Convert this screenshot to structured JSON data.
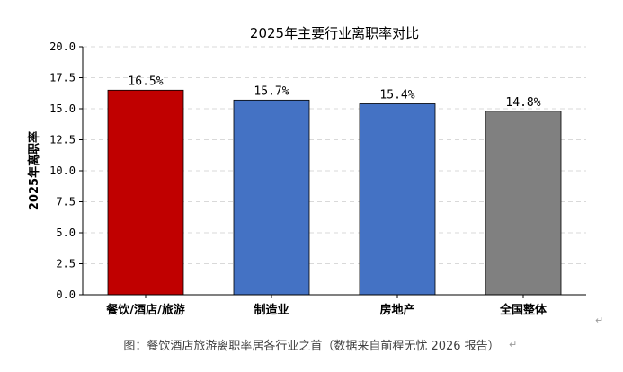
{
  "chart_data": {
    "type": "bar",
    "title": "2025年主要行业离职率对比",
    "ylabel": "2025年离职率",
    "xlabel": "",
    "categories": [
      "餐饮/酒店/旅游",
      "制造业",
      "房地产",
      "全国整体"
    ],
    "values": [
      16.5,
      15.7,
      15.4,
      14.8
    ],
    "value_labels": [
      "16.5%",
      "15.7%",
      "15.4%",
      "14.8%"
    ],
    "colors": [
      "#c00000",
      "#4472c4",
      "#4472c4",
      "#808080"
    ],
    "ylim": [
      0,
      20
    ],
    "yticks": [
      "0.0",
      "2.5",
      "5.0",
      "7.5",
      "10.0",
      "12.5",
      "15.0",
      "17.5",
      "20.0"
    ],
    "ytick_values": [
      0,
      2.5,
      5,
      7.5,
      10,
      12.5,
      15,
      17.5,
      20
    ],
    "grid": "horizontal dashed",
    "legend": "none"
  },
  "caption": "图：餐饮酒店旅游离职率居各行业之首（数据来自前程无忧 2026 报告）",
  "para_mark": "↵"
}
